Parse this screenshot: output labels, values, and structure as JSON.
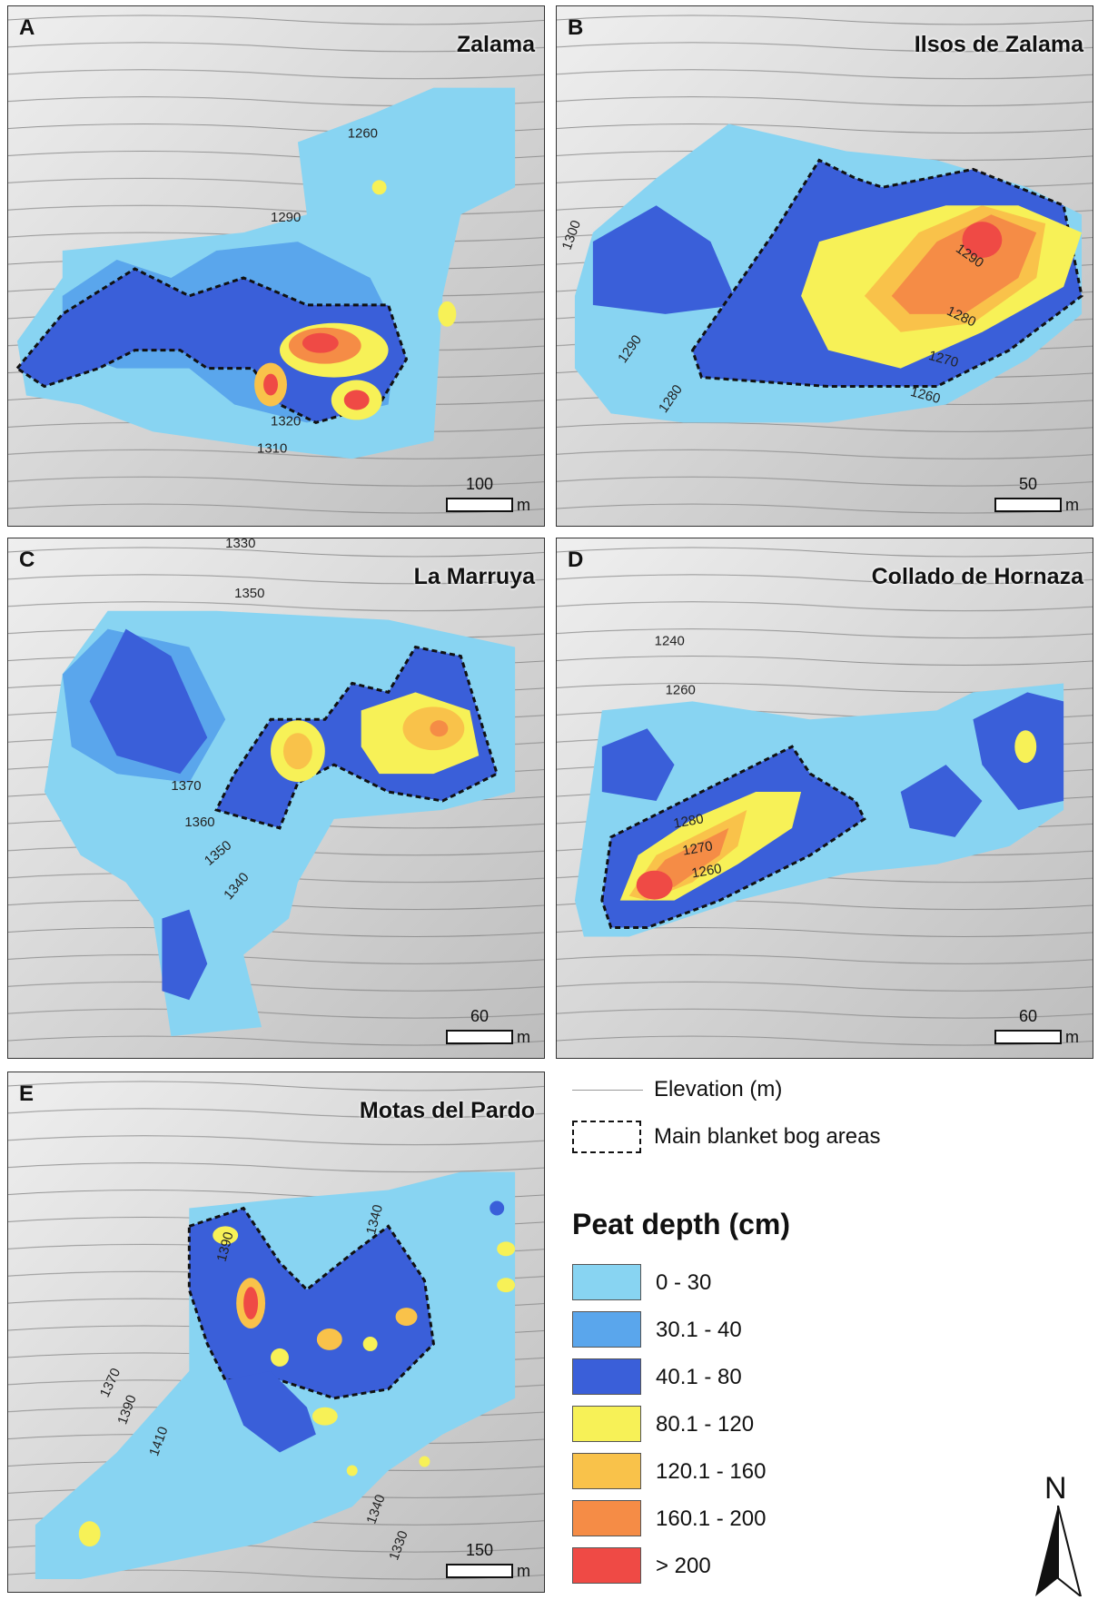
{
  "panels": [
    {
      "letter": "A",
      "title": "Zalama",
      "scale": "100",
      "unit": "m",
      "contours": [
        "1260",
        "1290",
        "1320",
        "1310"
      ]
    },
    {
      "letter": "B",
      "title": "Ilsos de Zalama",
      "scale": "50",
      "unit": "m",
      "contours": [
        "1300",
        "1290",
        "1290",
        "1280",
        "1270",
        "1260",
        "1280"
      ]
    },
    {
      "letter": "C",
      "title": "La Marruya",
      "scale": "60",
      "unit": "m",
      "contours": [
        "1330",
        "1350",
        "1370",
        "1360",
        "1350",
        "1340"
      ]
    },
    {
      "letter": "D",
      "title": "Collado de Hornaza",
      "scale": "60",
      "unit": "m",
      "contours": [
        "1240",
        "1260",
        "1280",
        "1270",
        "1260"
      ]
    },
    {
      "letter": "E",
      "title": "Motas del Pardo",
      "scale": "150",
      "unit": "m",
      "contours": [
        "1390",
        "1340",
        "1370",
        "1390",
        "1410",
        "1340",
        "1330"
      ]
    }
  ],
  "legend": {
    "elevation_label": "Elevation (m)",
    "bog_label": "Main blanket bog areas",
    "title": "Peat depth (cm)",
    "classes": [
      {
        "label": "0 - 30",
        "color": "#88d4f2"
      },
      {
        "label": "30.1 - 40",
        "color": "#5aa6ec"
      },
      {
        "label": "40.1 - 80",
        "color": "#3a5fd9"
      },
      {
        "label": "80.1 - 120",
        "color": "#f7f157"
      },
      {
        "label": "120.1 - 160",
        "color": "#f9c24a"
      },
      {
        "label": "160.1 - 200",
        "color": "#f58c46"
      },
      {
        "label": "> 200",
        "color": "#ef4a45"
      }
    ]
  },
  "north_label": "N"
}
